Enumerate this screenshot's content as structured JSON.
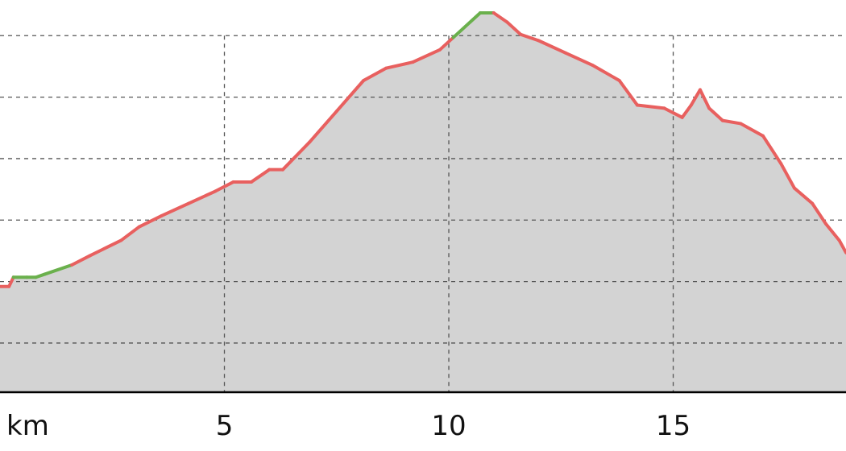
{
  "chart_data": {
    "type": "area",
    "title": "",
    "xlabel": "km",
    "ylabel": "",
    "x_ticks": [
      5,
      10,
      15
    ],
    "xlim": [
      0,
      18.85
    ],
    "ylim": [
      0,
      6.38
    ],
    "y_gridlines": [
      0.8,
      1.8,
      2.8,
      3.8,
      4.8,
      5.8
    ],
    "grid": "dashed",
    "colors": {
      "fill": "#d3d3d3",
      "line": "#e8605f",
      "highlight": "#6ab04c",
      "grid": "#555555",
      "axis": "#000000"
    },
    "series": [
      {
        "points": [
          [
            0.0,
            1.72
          ],
          [
            0.2,
            1.72
          ],
          [
            0.3,
            1.87
          ],
          [
            0.6,
            1.87
          ],
          [
            0.8,
            1.87
          ],
          [
            1.0,
            1.92
          ],
          [
            1.6,
            2.07
          ],
          [
            2.0,
            2.22
          ],
          [
            2.7,
            2.47
          ],
          [
            3.1,
            2.69
          ],
          [
            3.6,
            2.87
          ],
          [
            4.2,
            3.07
          ],
          [
            4.8,
            3.27
          ],
          [
            5.2,
            3.42
          ],
          [
            5.6,
            3.42
          ],
          [
            6.0,
            3.62
          ],
          [
            6.3,
            3.62
          ],
          [
            6.9,
            4.07
          ],
          [
            7.5,
            4.57
          ],
          [
            8.1,
            5.07
          ],
          [
            8.6,
            5.27
          ],
          [
            9.2,
            5.37
          ],
          [
            9.8,
            5.57
          ],
          [
            10.1,
            5.77
          ],
          [
            10.7,
            6.17
          ],
          [
            11.0,
            6.17
          ],
          [
            11.3,
            6.02
          ],
          [
            11.6,
            5.82
          ],
          [
            12.0,
            5.72
          ],
          [
            12.6,
            5.52
          ],
          [
            13.2,
            5.32
          ],
          [
            13.8,
            5.07
          ],
          [
            14.2,
            4.67
          ],
          [
            14.8,
            4.62
          ],
          [
            15.2,
            4.47
          ],
          [
            15.4,
            4.67
          ],
          [
            15.6,
            4.92
          ],
          [
            15.8,
            4.62
          ],
          [
            16.1,
            4.42
          ],
          [
            16.5,
            4.37
          ],
          [
            17.0,
            4.17
          ],
          [
            17.4,
            3.72
          ],
          [
            17.7,
            3.32
          ],
          [
            18.1,
            3.07
          ],
          [
            18.4,
            2.74
          ],
          [
            18.7,
            2.47
          ],
          [
            18.85,
            2.27
          ]
        ],
        "highlight_ranges": [
          [
            0.3,
            1.6
          ],
          [
            10.1,
            11.0
          ]
        ]
      }
    ]
  }
}
